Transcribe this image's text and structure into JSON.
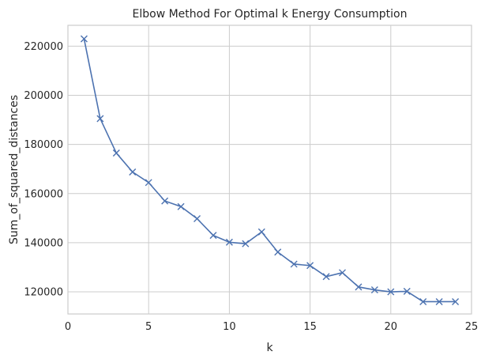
{
  "chart_data": {
    "type": "line",
    "title": "Elbow Method For Optimal k Energy Consumption",
    "xlabel": "k",
    "ylabel": "Sum_of_squared_distances",
    "xlim": [
      0.0,
      25.0
    ],
    "ylim": [
      111000,
      228500
    ],
    "xticks": [
      0,
      5,
      10,
      15,
      20,
      25
    ],
    "yticks": [
      120000,
      140000,
      160000,
      180000,
      200000,
      220000
    ],
    "grid": true,
    "marker": "x",
    "series": [
      {
        "color": "#4c72b0",
        "x": [
          1,
          2,
          3,
          4,
          5,
          6,
          7,
          8,
          9,
          10,
          11,
          12,
          13,
          14,
          15,
          16,
          17,
          18,
          19,
          20,
          21,
          22,
          23,
          24
        ],
        "values": [
          223000,
          190500,
          176500,
          168800,
          164500,
          157000,
          154700,
          149800,
          143000,
          140200,
          139600,
          144400,
          136200,
          131300,
          130700,
          126200,
          127800,
          122000,
          120800,
          120000,
          120200,
          116000,
          116000,
          116000
        ]
      }
    ]
  }
}
